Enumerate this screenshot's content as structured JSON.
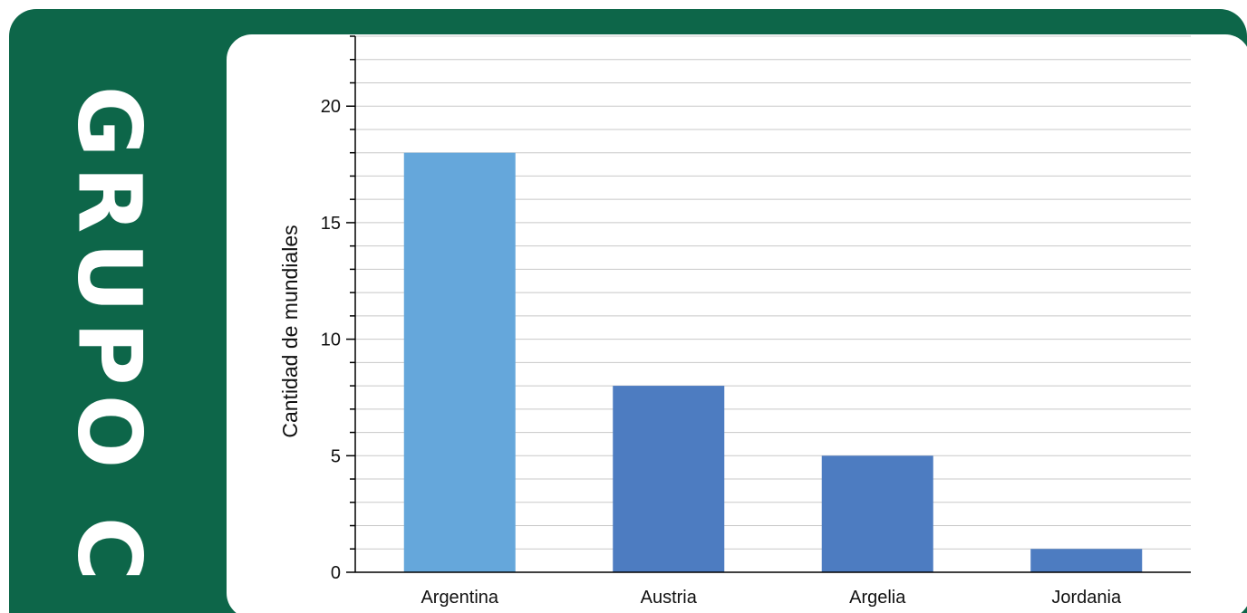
{
  "side_title": "GRUPO C",
  "colors": {
    "frame": "#0d6649",
    "panel": "#ffffff",
    "highlight_bar": "#65a7db",
    "bar": "#4d7cc1",
    "grid": "#c8c8c8",
    "axis": "#000000"
  },
  "chart_data": {
    "type": "bar",
    "title": "",
    "xlabel": "",
    "ylabel": "Cantidad de mundiales",
    "categories": [
      "Argentina",
      "Austria",
      "Argelia",
      "Jordania"
    ],
    "values": [
      18,
      8,
      5,
      1
    ],
    "highlighted_category": "Argentina",
    "ylim": [
      0,
      23
    ],
    "major_ticks": [
      0,
      5,
      10,
      15,
      20
    ],
    "minor_tick_step": 1,
    "grid": true,
    "legend": "none"
  }
}
